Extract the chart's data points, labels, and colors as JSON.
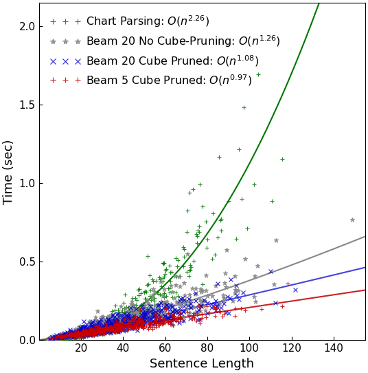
{
  "title": "",
  "xlabel": "Sentence Length",
  "ylabel": "Time (sec)",
  "xlim": [
    0,
    155
  ],
  "ylim": [
    0,
    2.15
  ],
  "yticks": [
    0.0,
    0.5,
    1.0,
    1.5,
    2.0
  ],
  "xticks": [
    20,
    40,
    60,
    80,
    100,
    120,
    140
  ],
  "series": [
    {
      "name": "Chart Parsing",
      "label": "Chart Parsing: $\\mathit{O}(n^{2.26})$",
      "color": "#007700",
      "line_color": "#007700",
      "marker": "+",
      "exponent": 2.26,
      "scale": 3.4e-05,
      "noise_sigma": 0.28,
      "marker_size": 5,
      "linewidth": 1.5
    },
    {
      "name": "Beam 20 No Cube-Pruning",
      "label": "Beam 20 No Cube-Pruning: $\\mathit{O}(n^{1.26})$",
      "color": "#888888",
      "line_color": "#888888",
      "marker": "*",
      "exponent": 1.26,
      "scale": 0.00115,
      "noise_sigma": 0.28,
      "marker_size": 5,
      "linewidth": 1.5
    },
    {
      "name": "Beam 20 Cube Pruned",
      "label": "Beam 20 Cube Pruned: $\\mathit{O}(n^{1.08})$",
      "color": "#0000CC",
      "line_color": "#4444DD",
      "marker": "x",
      "exponent": 1.08,
      "scale": 0.002,
      "noise_sigma": 0.28,
      "marker_size": 5,
      "linewidth": 1.5
    },
    {
      "name": "Beam 5 Cube Pruned",
      "label": "Beam 5 Cube Pruned: $\\mathit{O}(n^{0.97})$",
      "color": "#CC0000",
      "line_color": "#CC2222",
      "marker": "+",
      "exponent": 0.97,
      "scale": 0.0024,
      "noise_sigma": 0.22,
      "marker_size": 5,
      "linewidth": 1.5
    }
  ],
  "legend_fontsize": 11.5,
  "axis_fontsize": 13,
  "tick_fontsize": 11,
  "background_color": "#ffffff",
  "seed": 42
}
